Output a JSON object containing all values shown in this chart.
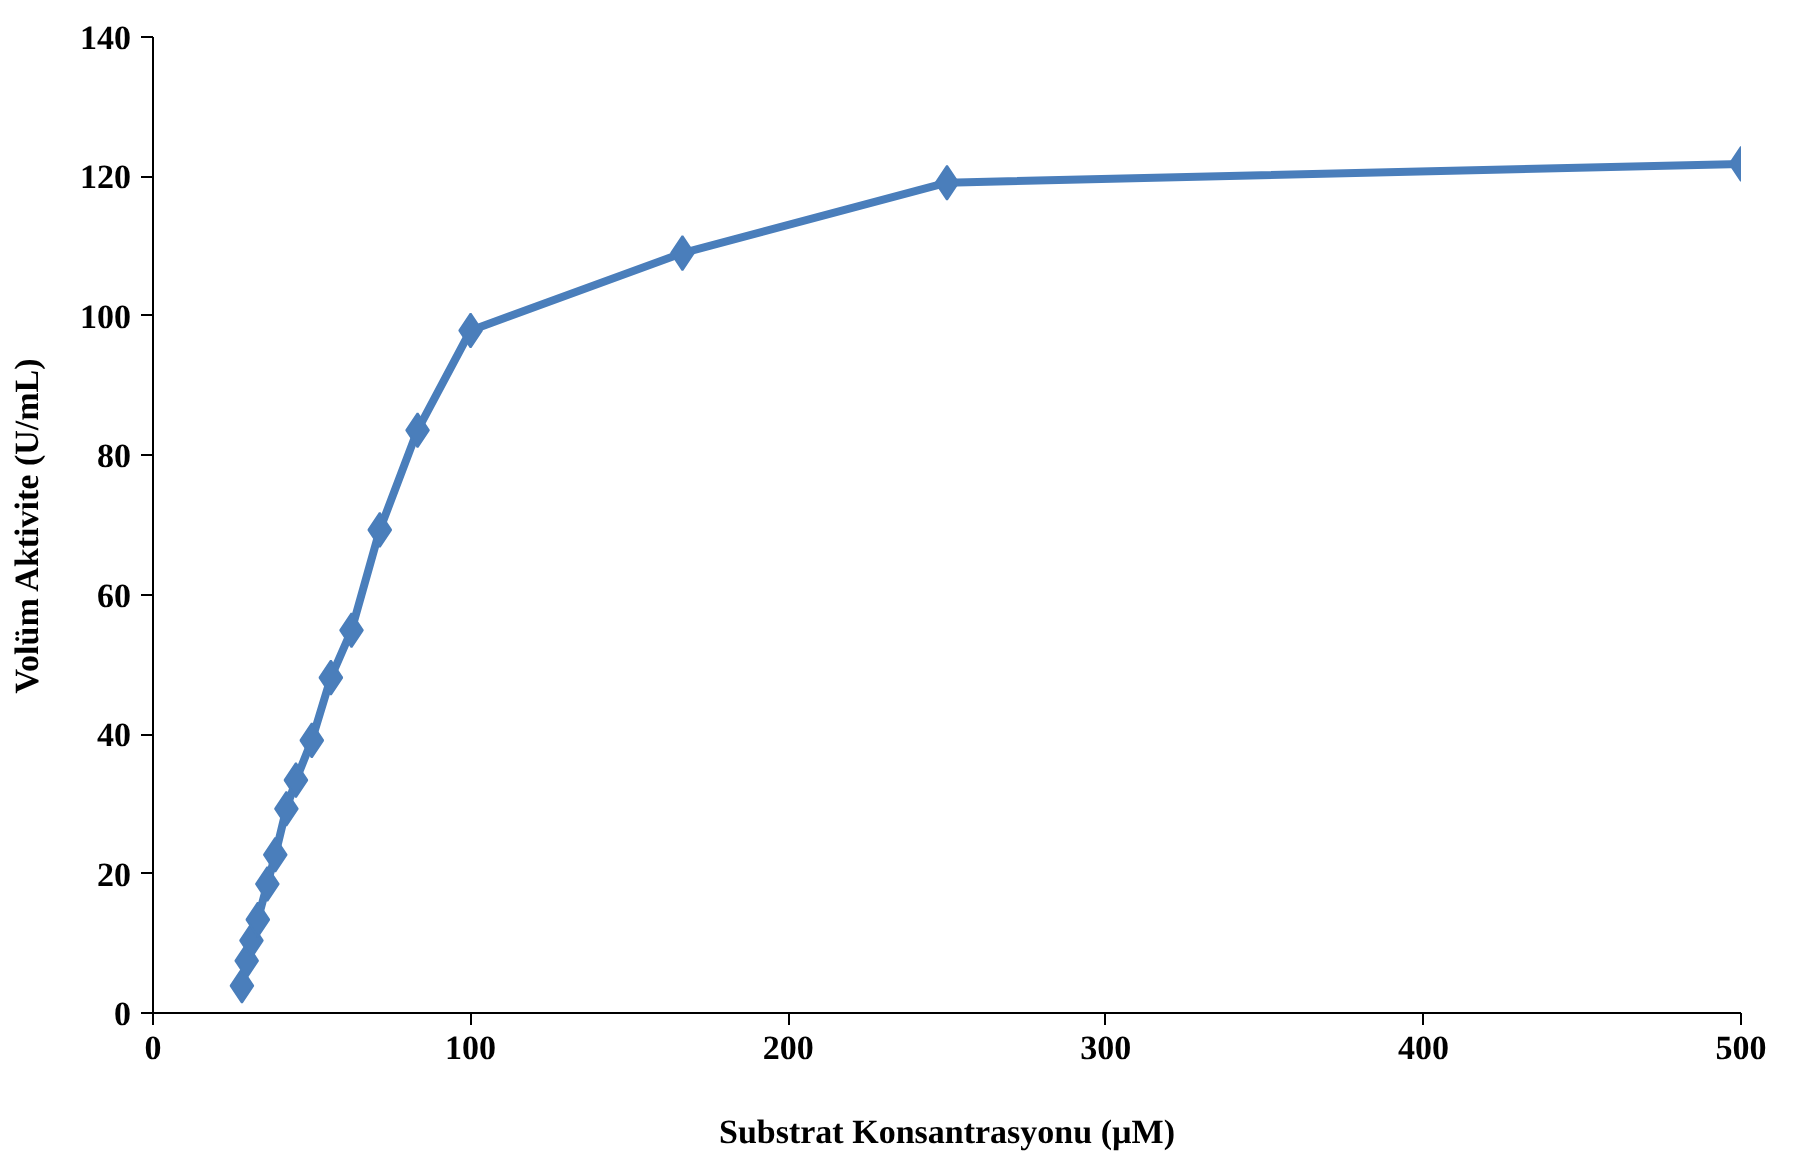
{
  "chart_data": {
    "type": "line",
    "xlabel": "Substrat Konsantrasyonu (µM)",
    "ylabel": "Volüm Aktivite (U/mL)",
    "x": [
      28,
      29.5,
      31,
      33,
      36,
      38.5,
      42,
      45,
      50,
      56,
      62.5,
      71.4,
      83.3,
      100,
      166.7,
      250,
      500
    ],
    "series": [
      {
        "color": "#4a7ebb",
        "values": [
          3.9,
          7.5,
          10.4,
          13.4,
          18.5,
          22.7,
          29.3,
          33.4,
          39.1,
          48.1,
          54.9,
          69.3,
          83.6,
          97.9,
          109.0,
          119.1,
          121.8
        ]
      }
    ],
    "xlim": [
      0,
      500
    ],
    "xticks": [
      0,
      100,
      200,
      300,
      400,
      500
    ],
    "ylim": [
      0,
      140
    ],
    "yticks": [
      0,
      20,
      40,
      60,
      80,
      100,
      120,
      140
    ],
    "grid": false,
    "marker": "diamond",
    "line_style": "solid"
  }
}
